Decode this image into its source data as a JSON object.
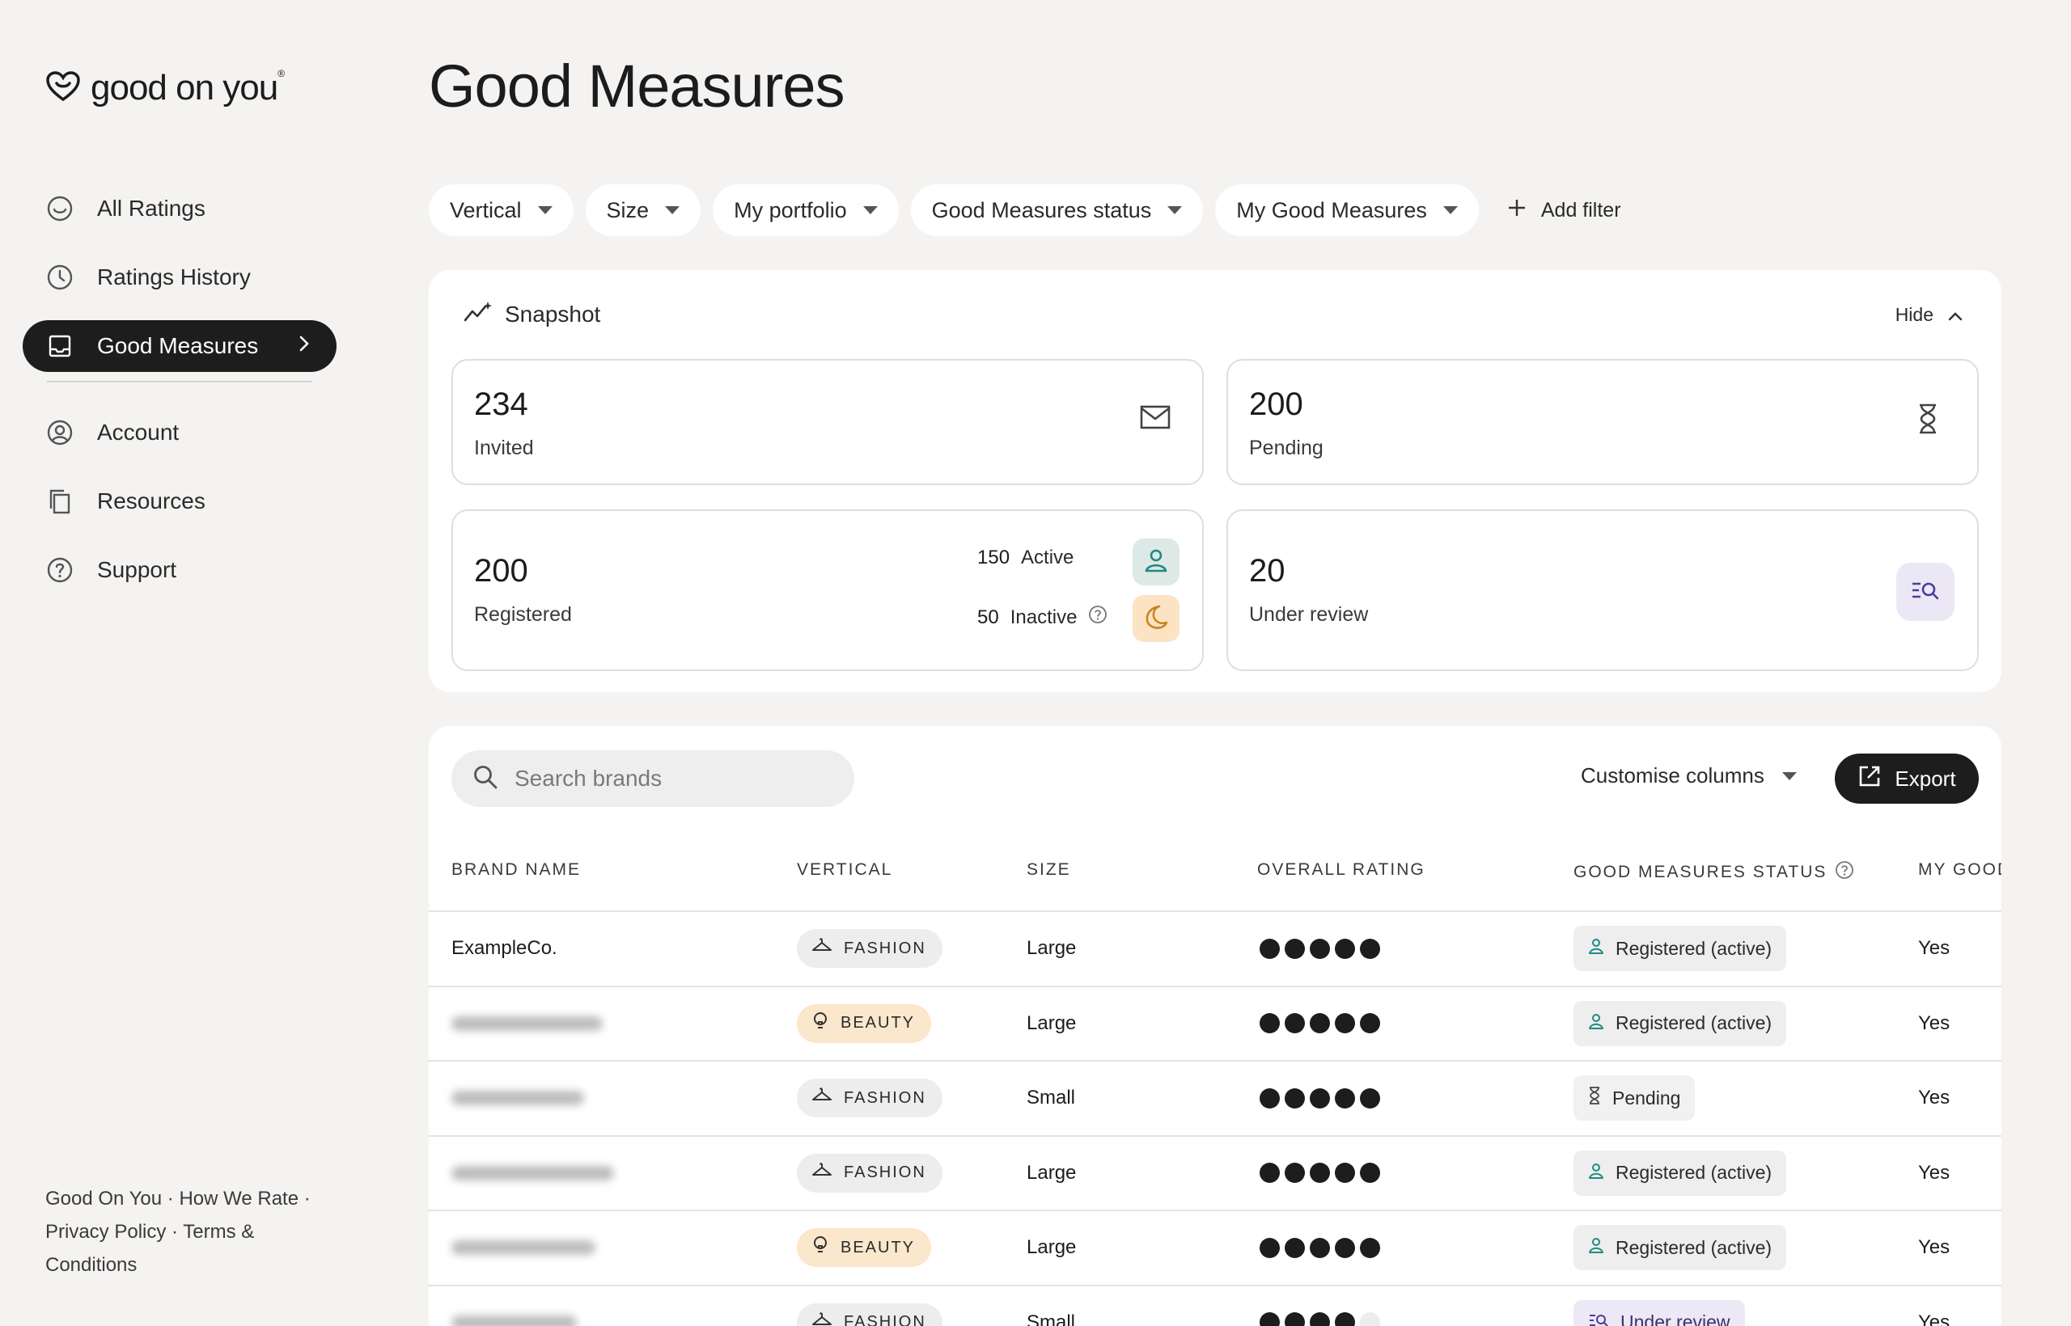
{
  "brand": {
    "logo_text": "good on you",
    "logo_mark": "®"
  },
  "sidebar": {
    "items": [
      {
        "label": "All Ratings",
        "icon": "smile-face-icon"
      },
      {
        "label": "Ratings History",
        "icon": "clock-icon"
      },
      {
        "label": "Good Measures",
        "icon": "inbox-icon",
        "active": true
      },
      {
        "label": "Account",
        "icon": "user-circle-icon"
      },
      {
        "label": "Resources",
        "icon": "copy-icon"
      },
      {
        "label": "Support",
        "icon": "help-circle-icon"
      }
    ],
    "footer": "Good On You · How We Rate · Privacy Policy · Terms & Conditions"
  },
  "page": {
    "title": "Good Measures"
  },
  "filters": {
    "pills": [
      "Vertical",
      "Size",
      "My portfolio",
      "Good Measures status",
      "My Good Measures"
    ],
    "add_label": "Add filter"
  },
  "snapshot": {
    "title": "Snapshot",
    "hide_label": "Hide",
    "invited": {
      "value": "234",
      "label": "Invited"
    },
    "pending": {
      "value": "200",
      "label": "Pending"
    },
    "registered": {
      "value": "200",
      "label": "Registered",
      "active_count": "150",
      "active_label": "Active",
      "inactive_count": "50",
      "inactive_label": "Inactive"
    },
    "under_review": {
      "value": "20",
      "label": "Under review"
    }
  },
  "table": {
    "search_placeholder": "Search brands",
    "customise_label": "Customise columns",
    "export_label": "Export",
    "columns": [
      "BRAND NAME",
      "VERTICAL",
      "SIZE",
      "OVERALL RATING",
      "GOOD MEASURES STATUS",
      "MY GOOD"
    ],
    "rows": [
      {
        "brand": "ExampleCo.",
        "vertical": "FASHION",
        "size": "Large",
        "rating": 5,
        "status": "Registered (active)",
        "mine": "Yes"
      },
      {
        "brand": "",
        "vertical": "BEAUTY",
        "size": "Large",
        "rating": 5,
        "status": "Registered (active)",
        "mine": "Yes"
      },
      {
        "brand": "",
        "vertical": "FASHION",
        "size": "Small",
        "rating": 5,
        "status": "Pending",
        "mine": "Yes"
      },
      {
        "brand": "",
        "vertical": "FASHION",
        "size": "Large",
        "rating": 5,
        "status": "Registered (active)",
        "mine": "Yes"
      },
      {
        "brand": "",
        "vertical": "BEAUTY",
        "size": "Large",
        "rating": 5,
        "status": "Registered (active)",
        "mine": "Yes"
      },
      {
        "brand": "",
        "vertical": "FASHION",
        "size": "Small",
        "rating": 4,
        "status": "Under review",
        "mine": "Yes"
      }
    ]
  },
  "colors": {
    "accent_dark": "#1d1d1d",
    "teal": "#1f8a82",
    "amber": "#c9861e",
    "purple": "#4b3c9c"
  }
}
